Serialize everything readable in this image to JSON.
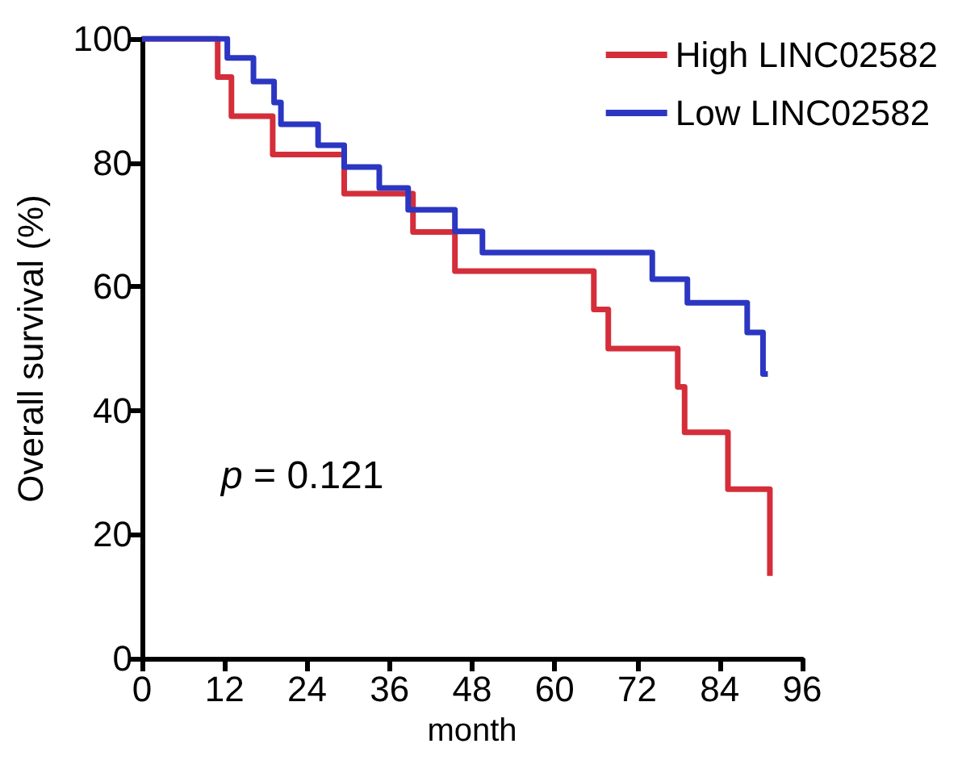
{
  "chart_data": {
    "type": "step",
    "xlabel": "month",
    "ylabel": "Overall survival (%)",
    "annotations": [
      "p = 0.121"
    ],
    "series": [
      {
        "name": "High LINC02582",
        "color": "#d42e3a",
        "x": [
          0,
          11,
          13,
          19,
          29.4,
          39.4,
          45.5,
          65.7,
          67.8,
          77.9,
          78.9,
          85.2,
          91.3
        ],
        "values": [
          100,
          93.8,
          87.5,
          81.3,
          75,
          68.8,
          62.5,
          56.3,
          50,
          43.8,
          36.5,
          27.3,
          13.3
        ]
      },
      {
        "name": "Low LINC02582",
        "color": "#2b36c2",
        "x": [
          0,
          12.4,
          16.2,
          19.2,
          20.2,
          25.6,
          29.4,
          34.5,
          38.7,
          45.5,
          49.5,
          74.2,
          79.3,
          88,
          90.3,
          91
        ],
        "values": [
          100,
          96.9,
          93.1,
          89.7,
          86.2,
          82.8,
          79.3,
          75.9,
          72.4,
          68.9,
          65.5,
          61.2,
          57.4,
          52.6,
          45.9,
          45.9
        ]
      }
    ],
    "xlim": [
      0,
      96
    ],
    "xticks": [
      0,
      12,
      24,
      36,
      48,
      60,
      72,
      84,
      96
    ],
    "ylim": [
      0,
      100
    ],
    "yticks": [
      0,
      20,
      40,
      60,
      80,
      100
    ],
    "grid": false,
    "legend": "top right",
    "marker": "none",
    "line_style": "solid"
  }
}
